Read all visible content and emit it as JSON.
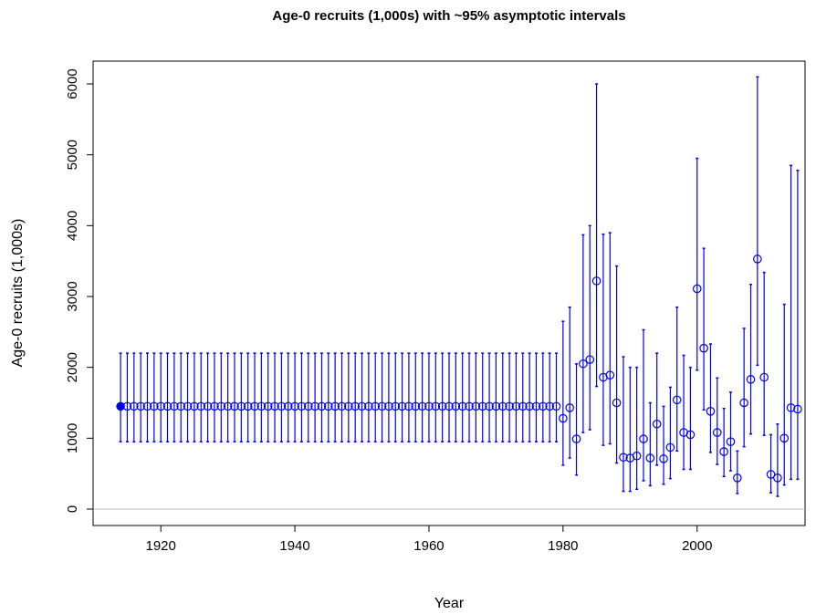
{
  "chart_data": {
    "type": "errorbar",
    "title": "Age-0 recruits (1,000s) with ~95% asymptotic intervals",
    "x_label": "Year",
    "y_label": "Age-0 recruits (1,000s)",
    "color": "#0000ee",
    "hline": 0,
    "hline_color": "#bbbbbb",
    "x": [
      1914,
      1915,
      1916,
      1917,
      1918,
      1919,
      1920,
      1921,
      1922,
      1923,
      1924,
      1925,
      1926,
      1927,
      1928,
      1929,
      1930,
      1931,
      1932,
      1933,
      1934,
      1935,
      1936,
      1937,
      1938,
      1939,
      1940,
      1941,
      1942,
      1943,
      1944,
      1945,
      1946,
      1947,
      1948,
      1949,
      1950,
      1951,
      1952,
      1953,
      1954,
      1955,
      1956,
      1957,
      1958,
      1959,
      1960,
      1961,
      1962,
      1963,
      1964,
      1965,
      1966,
      1967,
      1968,
      1969,
      1970,
      1971,
      1972,
      1973,
      1974,
      1975,
      1976,
      1977,
      1978,
      1979,
      1980,
      1981,
      1982,
      1983,
      1984,
      1985,
      1986,
      1987,
      1988,
      1989,
      1990,
      1991,
      1992,
      1993,
      1994,
      1995,
      1996,
      1997,
      1998,
      1999,
      2000,
      2001,
      2002,
      2003,
      2004,
      2005,
      2006,
      2007,
      2008,
      2009,
      2010,
      2011,
      2012,
      2013,
      2014,
      2015
    ],
    "values": [
      1450,
      1450,
      1450,
      1450,
      1450,
      1450,
      1450,
      1450,
      1450,
      1450,
      1450,
      1450,
      1450,
      1450,
      1450,
      1450,
      1450,
      1450,
      1450,
      1450,
      1450,
      1450,
      1450,
      1450,
      1450,
      1450,
      1450,
      1450,
      1450,
      1450,
      1450,
      1450,
      1450,
      1450,
      1450,
      1450,
      1450,
      1450,
      1450,
      1450,
      1450,
      1450,
      1450,
      1450,
      1450,
      1450,
      1450,
      1450,
      1450,
      1450,
      1450,
      1450,
      1450,
      1450,
      1450,
      1450,
      1450,
      1450,
      1450,
      1450,
      1450,
      1450,
      1450,
      1450,
      1450,
      1450,
      1280,
      1430,
      990,
      2050,
      2110,
      3220,
      1860,
      1890,
      1500,
      730,
      720,
      750,
      990,
      720,
      1200,
      710,
      870,
      1540,
      1080,
      1050,
      3110,
      2270,
      1380,
      1080,
      810,
      950,
      440,
      1500,
      1830,
      3530,
      1860,
      490,
      440,
      1000,
      1430,
      1410
    ],
    "lower": [
      950,
      950,
      950,
      950,
      950,
      950,
      950,
      950,
      950,
      950,
      950,
      950,
      950,
      950,
      950,
      950,
      950,
      950,
      950,
      950,
      950,
      950,
      950,
      950,
      950,
      950,
      950,
      950,
      950,
      950,
      950,
      950,
      950,
      950,
      950,
      950,
      950,
      950,
      950,
      950,
      950,
      950,
      950,
      950,
      950,
      950,
      950,
      950,
      950,
      950,
      950,
      950,
      950,
      950,
      950,
      950,
      950,
      950,
      950,
      950,
      950,
      950,
      950,
      950,
      950,
      950,
      620,
      720,
      480,
      1080,
      1120,
      1730,
      900,
      920,
      650,
      250,
      250,
      280,
      400,
      330,
      620,
      350,
      430,
      820,
      560,
      560,
      1960,
      1400,
      800,
      630,
      460,
      540,
      220,
      880,
      1060,
      2030,
      1040,
      230,
      180,
      340,
      420,
      420
    ],
    "upper": [
      2200,
      2200,
      2200,
      2200,
      2200,
      2200,
      2200,
      2200,
      2200,
      2200,
      2200,
      2200,
      2200,
      2200,
      2200,
      2200,
      2200,
      2200,
      2200,
      2200,
      2200,
      2200,
      2200,
      2200,
      2200,
      2200,
      2200,
      2200,
      2200,
      2200,
      2200,
      2200,
      2200,
      2200,
      2200,
      2200,
      2200,
      2200,
      2200,
      2200,
      2200,
      2200,
      2200,
      2200,
      2200,
      2200,
      2200,
      2200,
      2200,
      2200,
      2200,
      2200,
      2200,
      2200,
      2200,
      2200,
      2200,
      2200,
      2200,
      2200,
      2200,
      2200,
      2200,
      2200,
      2200,
      2200,
      2650,
      2850,
      2050,
      3870,
      4000,
      6000,
      3880,
      3900,
      3430,
      2150,
      2000,
      2000,
      2530,
      1500,
      2200,
      1450,
      1720,
      2850,
      2170,
      2000,
      4950,
      3680,
      2330,
      1850,
      1420,
      1650,
      820,
      2550,
      3170,
      6100,
      3340,
      1050,
      1200,
      2890,
      4850,
      4780
    ],
    "xlim": [
      1909.9,
      2016.1
    ],
    "ylim": [
      -232,
      6322
    ],
    "xticks": [
      1920,
      1940,
      1960,
      1980,
      2000
    ],
    "yticks": [
      0,
      1000,
      2000,
      3000,
      4000,
      5000,
      6000
    ]
  }
}
